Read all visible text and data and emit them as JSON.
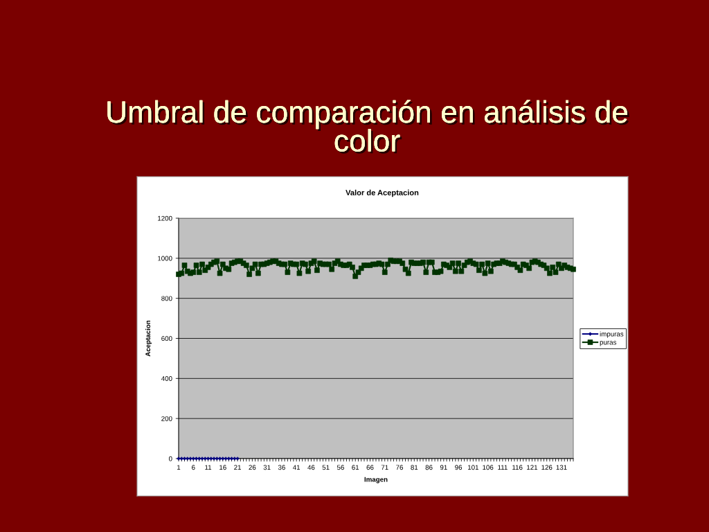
{
  "chart_data": {
    "type": "line",
    "title": "Umbral de comparación en análisis de\ncolor",
    "subtitle": "Valor de Aceptacion",
    "xlabel": "Imagen",
    "ylabel": "Aceptacion",
    "categories": [
      "1",
      null,
      null,
      null,
      null,
      "6",
      null,
      null,
      null,
      null,
      "11",
      null,
      null,
      null,
      null,
      "16",
      null,
      null,
      null,
      null,
      "21",
      null,
      null,
      null,
      null,
      "26",
      null,
      null,
      null,
      null,
      "31",
      null,
      null,
      null,
      null,
      "36",
      null,
      null,
      null,
      null,
      "41",
      null,
      null,
      null,
      null,
      "46",
      null,
      null,
      null,
      null,
      "51",
      null,
      null,
      null,
      null,
      "56",
      null,
      null,
      null,
      null,
      "61",
      null,
      null,
      null,
      null,
      "66",
      null,
      null,
      null,
      null,
      "71",
      null,
      null,
      null,
      null,
      "76",
      null,
      null,
      null,
      null,
      "81",
      null,
      null,
      null,
      null,
      "86",
      null,
      null,
      null,
      null,
      "91",
      null,
      null,
      null,
      null,
      "96",
      null,
      null,
      null,
      null,
      "101",
      null,
      null,
      null,
      null,
      "106",
      null,
      null,
      null,
      null,
      "111",
      null,
      null,
      null,
      null,
      "116",
      null,
      null,
      null,
      null,
      "121",
      null,
      null,
      null,
      null,
      "126",
      null,
      null,
      null,
      null,
      "131",
      null,
      null,
      null,
      null
    ],
    "series": [
      {
        "name": "impuras",
        "color": "#000080",
        "marker": "diamond",
        "values": [
          0,
          0,
          0,
          0,
          0,
          0,
          0,
          0,
          0,
          0,
          0,
          0,
          0,
          0,
          0,
          0,
          0,
          0,
          0,
          0,
          0,
          null,
          null,
          null,
          null,
          null,
          null,
          null,
          null,
          null,
          null,
          null,
          null,
          null,
          null,
          null,
          null,
          null,
          null,
          null,
          null,
          null,
          null,
          null,
          null,
          null,
          null,
          null,
          null,
          null,
          null,
          null,
          null,
          null,
          null,
          null,
          null,
          null,
          null,
          null,
          null,
          null,
          null,
          null,
          null,
          null,
          null,
          null,
          null,
          null,
          null,
          null,
          null,
          null,
          null,
          null,
          null,
          null,
          null,
          null,
          null,
          null,
          null,
          null,
          null,
          null,
          null,
          null,
          null,
          null,
          null,
          null,
          null,
          null,
          null,
          null,
          null,
          null,
          null,
          null,
          null,
          null,
          null,
          null,
          null,
          null,
          null,
          null,
          null,
          null,
          null,
          null,
          null,
          null,
          null,
          null,
          null,
          null,
          null,
          null,
          null,
          null,
          null,
          null,
          null,
          null,
          null,
          null,
          null,
          null,
          null,
          null,
          null,
          null,
          null
        ]
      },
      {
        "name": "puras",
        "color": "#003300",
        "marker": "square",
        "values": [
          920,
          925,
          965,
          935,
          925,
          930,
          965,
          930,
          970,
          940,
          955,
          970,
          980,
          985,
          925,
          970,
          950,
          945,
          975,
          980,
          985,
          985,
          975,
          965,
          920,
          950,
          970,
          925,
          970,
          970,
          975,
          980,
          985,
          985,
          975,
          970,
          970,
          930,
          975,
          970,
          970,
          925,
          975,
          970,
          935,
          975,
          985,
          940,
          975,
          970,
          970,
          970,
          945,
          975,
          985,
          970,
          965,
          965,
          970,
          955,
          910,
          930,
          950,
          965,
          965,
          965,
          970,
          970,
          975,
          970,
          930,
          970,
          990,
          985,
          985,
          985,
          975,
          945,
          925,
          980,
          975,
          975,
          975,
          980,
          930,
          980,
          980,
          930,
          930,
          935,
          970,
          965,
          955,
          975,
          935,
          975,
          935,
          965,
          980,
          985,
          975,
          970,
          940,
          970,
          925,
          975,
          935,
          970,
          975,
          975,
          985,
          980,
          975,
          970,
          970,
          955,
          940,
          970,
          965,
          950,
          980,
          985,
          980,
          970,
          965,
          950,
          925,
          955,
          930,
          970,
          950,
          965,
          955,
          950,
          945
        ]
      }
    ],
    "ylim": [
      0,
      1200
    ],
    "yticks": [
      0,
      200,
      400,
      600,
      800,
      1000,
      1200
    ],
    "grid": "y",
    "legend": "right",
    "line_style": "solid"
  }
}
